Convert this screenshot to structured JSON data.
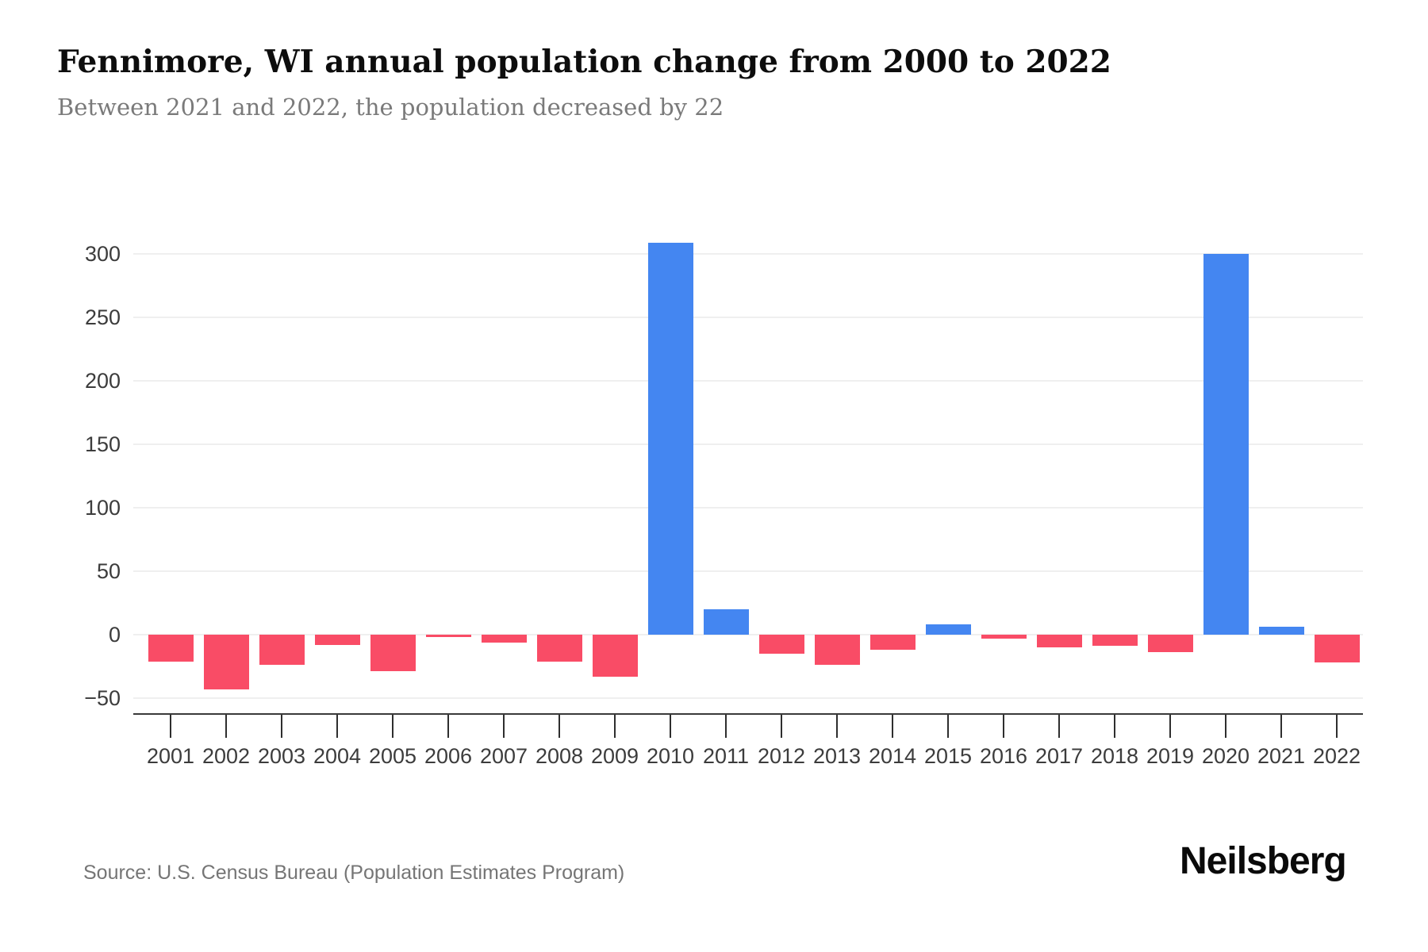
{
  "header": {
    "title": "Fennimore, WI annual population change from 2000 to 2022",
    "subtitle": "Between 2021 and 2022, the population decreased by 22"
  },
  "footer": {
    "source": "Source: U.S. Census Bureau (Population Estimates Program)",
    "brand": "Neilsberg"
  },
  "colors": {
    "positive_bar": "#4486F1",
    "negative_bar": "#F94C66"
  },
  "chart_data": {
    "type": "bar",
    "title": "Fennimore, WI annual population change from 2000 to 2022",
    "xlabel": "",
    "ylabel": "",
    "categories": [
      "2001",
      "2002",
      "2003",
      "2004",
      "2005",
      "2006",
      "2007",
      "2008",
      "2009",
      "2010",
      "2011",
      "2012",
      "2013",
      "2014",
      "2015",
      "2016",
      "2017",
      "2018",
      "2019",
      "2020",
      "2021",
      "2022"
    ],
    "values": [
      -21,
      -43,
      -24,
      -8,
      -29,
      -2,
      -6,
      -21,
      -33,
      309,
      20,
      -15,
      -24,
      -12,
      8,
      -3,
      -10,
      -9,
      -14,
      300,
      6,
      -22
    ],
    "y_ticks": [
      300,
      250,
      200,
      150,
      100,
      50,
      0,
      -50
    ],
    "ylim": [
      -62,
      350
    ],
    "grid": true,
    "legend": "none",
    "bar_color_rule": "blue when positive, pink-red when negative"
  }
}
